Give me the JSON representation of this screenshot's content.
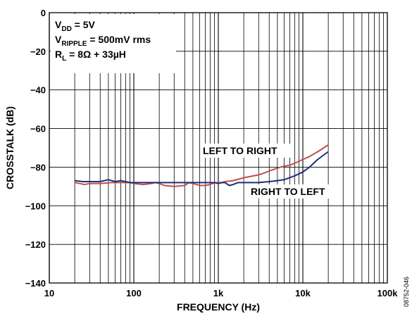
{
  "chart_data": {
    "type": "line",
    "xlabel": "FREQUENCY (Hz)",
    "ylabel": "CROSSTALK (dB)",
    "x_scale": "log",
    "xlim": [
      10,
      100000
    ],
    "ylim": [
      -140,
      0
    ],
    "grid": true,
    "x_tick_labels": [
      "10",
      "100",
      "1k",
      "10k",
      "100k"
    ],
    "y_tick_labels": [
      "0",
      "−20",
      "−40",
      "−60",
      "−80",
      "−100",
      "−120",
      "−140"
    ],
    "annotations": {
      "conditions": [
        {
          "base": "V",
          "sub": "DD",
          "rest": " = 5V"
        },
        {
          "base": "V",
          "sub": "RIPPLE",
          "rest": " = 500mV rms"
        },
        {
          "base": "R",
          "sub": "L",
          "rest": " = 8Ω + 33µH"
        }
      ],
      "figure_id": "08752-046"
    },
    "series": [
      {
        "name": "LEFT TO RIGHT",
        "color": "#c0504d",
        "points": [
          [
            20,
            -88
          ],
          [
            23,
            -88.5
          ],
          [
            26,
            -89
          ],
          [
            30,
            -88.5
          ],
          [
            40,
            -88.5
          ],
          [
            55,
            -88
          ],
          [
            70,
            -88
          ],
          [
            90,
            -88
          ],
          [
            100,
            -88.5
          ],
          [
            130,
            -89
          ],
          [
            160,
            -88.5
          ],
          [
            180,
            -88
          ],
          [
            200,
            -88.5
          ],
          [
            230,
            -89.5
          ],
          [
            300,
            -90
          ],
          [
            400,
            -89.5
          ],
          [
            450,
            -88
          ],
          [
            500,
            -88.5
          ],
          [
            550,
            -89
          ],
          [
            600,
            -89.5
          ],
          [
            700,
            -89.5
          ],
          [
            800,
            -89
          ],
          [
            900,
            -88
          ],
          [
            1000,
            -88
          ],
          [
            1100,
            -88
          ],
          [
            1200,
            -87.5
          ],
          [
            1500,
            -87
          ],
          [
            2000,
            -85.5
          ],
          [
            3000,
            -84
          ],
          [
            3500,
            -83
          ],
          [
            4000,
            -82
          ],
          [
            5000,
            -80.5
          ],
          [
            6000,
            -79.5
          ],
          [
            7000,
            -79
          ],
          [
            8000,
            -78
          ],
          [
            10000,
            -76
          ],
          [
            12000,
            -74.5
          ],
          [
            15000,
            -72
          ],
          [
            20000,
            -68.5
          ]
        ]
      },
      {
        "name": "RIGHT TO LEFT",
        "color": "#1f2d7a",
        "points": [
          [
            20,
            -87
          ],
          [
            25,
            -87.5
          ],
          [
            30,
            -87.5
          ],
          [
            40,
            -87.5
          ],
          [
            50,
            -86.5
          ],
          [
            60,
            -87.5
          ],
          [
            70,
            -87
          ],
          [
            80,
            -87.5
          ],
          [
            90,
            -88
          ],
          [
            100,
            -88
          ],
          [
            200,
            -88
          ],
          [
            300,
            -88
          ],
          [
            500,
            -88
          ],
          [
            700,
            -88
          ],
          [
            900,
            -88
          ],
          [
            1000,
            -88.5
          ],
          [
            1100,
            -88
          ],
          [
            1200,
            -88
          ],
          [
            1350,
            -89.5
          ],
          [
            1500,
            -89
          ],
          [
            1700,
            -88
          ],
          [
            2000,
            -88
          ],
          [
            3000,
            -88
          ],
          [
            4000,
            -87.5
          ],
          [
            5000,
            -87
          ],
          [
            6000,
            -86.5
          ],
          [
            8000,
            -84.5
          ],
          [
            10000,
            -82.5
          ],
          [
            12000,
            -80
          ],
          [
            15000,
            -76
          ],
          [
            20000,
            -72
          ]
        ]
      }
    ]
  }
}
